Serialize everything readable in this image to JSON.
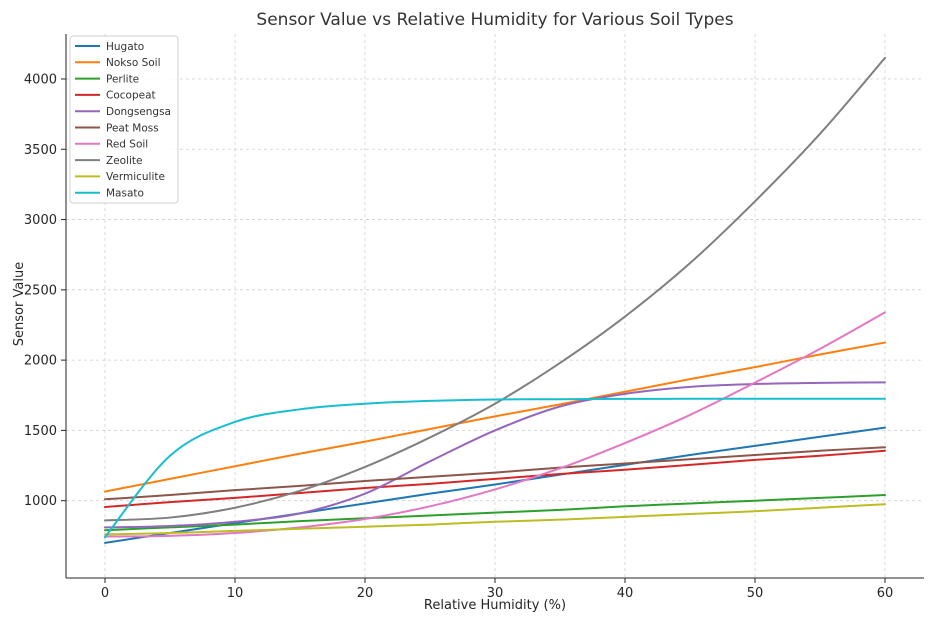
{
  "chart_data": {
    "type": "line",
    "title": "Sensor Value vs Relative Humidity for Various Soil Types",
    "xlabel": "Relative Humidity (%)",
    "ylabel": "Sensor Value",
    "xlim": [
      -3,
      63
    ],
    "ylim": [
      450,
      4320
    ],
    "xticks": [
      0,
      10,
      20,
      30,
      40,
      50,
      60
    ],
    "yticks": [
      1000,
      1500,
      2000,
      2500,
      3000,
      3500,
      4000
    ],
    "grid": true,
    "legend_position": "top-left",
    "x": [
      0,
      5,
      10,
      15,
      20,
      25,
      30,
      35,
      40,
      45,
      50,
      55,
      60
    ],
    "series": [
      {
        "name": "Hugato",
        "color": "#1f77b4",
        "values": [
          700,
          770,
          840,
          910,
          980,
          1050,
          1115,
          1185,
          1255,
          1325,
          1390,
          1455,
          1520
        ]
      },
      {
        "name": "Nokso Soil",
        "color": "#ff7f0e",
        "values": [
          1065,
          1155,
          1245,
          1335,
          1420,
          1510,
          1600,
          1685,
          1775,
          1865,
          1950,
          2040,
          2125
        ]
      },
      {
        "name": "Perlite",
        "color": "#2ca02c",
        "values": [
          790,
          810,
          830,
          855,
          875,
          895,
          915,
          935,
          960,
          980,
          1000,
          1020,
          1040
        ]
      },
      {
        "name": "Cocopeat",
        "color": "#d62728",
        "values": [
          955,
          990,
          1020,
          1055,
          1090,
          1120,
          1155,
          1190,
          1220,
          1255,
          1290,
          1320,
          1355
        ]
      },
      {
        "name": "Dongsengsa",
        "color": "#9467bd",
        "values": [
          810,
          820,
          850,
          910,
          1050,
          1280,
          1500,
          1670,
          1760,
          1810,
          1830,
          1838,
          1842
        ]
      },
      {
        "name": "Peat Moss",
        "color": "#8c564b",
        "values": [
          1010,
          1040,
          1075,
          1105,
          1140,
          1170,
          1200,
          1235,
          1265,
          1295,
          1325,
          1355,
          1380
        ]
      },
      {
        "name": "Red Soil",
        "color": "#e377c2",
        "values": [
          745,
          750,
          770,
          810,
          870,
          960,
          1080,
          1230,
          1410,
          1610,
          1840,
          2080,
          2340
        ]
      },
      {
        "name": "Zeolite",
        "color": "#7f7f7f",
        "values": [
          860,
          880,
          950,
          1070,
          1240,
          1450,
          1690,
          1980,
          2310,
          2690,
          3130,
          3610,
          4150
        ]
      },
      {
        "name": "Vermiculite",
        "color": "#bcbd22",
        "values": [
          760,
          770,
          785,
          800,
          815,
          830,
          850,
          865,
          885,
          905,
          925,
          950,
          975
        ]
      },
      {
        "name": "Masato",
        "color": "#17becf",
        "values": [
          740,
          1320,
          1560,
          1650,
          1690,
          1710,
          1720,
          1722,
          1724,
          1725,
          1725,
          1725,
          1725
        ]
      }
    ]
  }
}
